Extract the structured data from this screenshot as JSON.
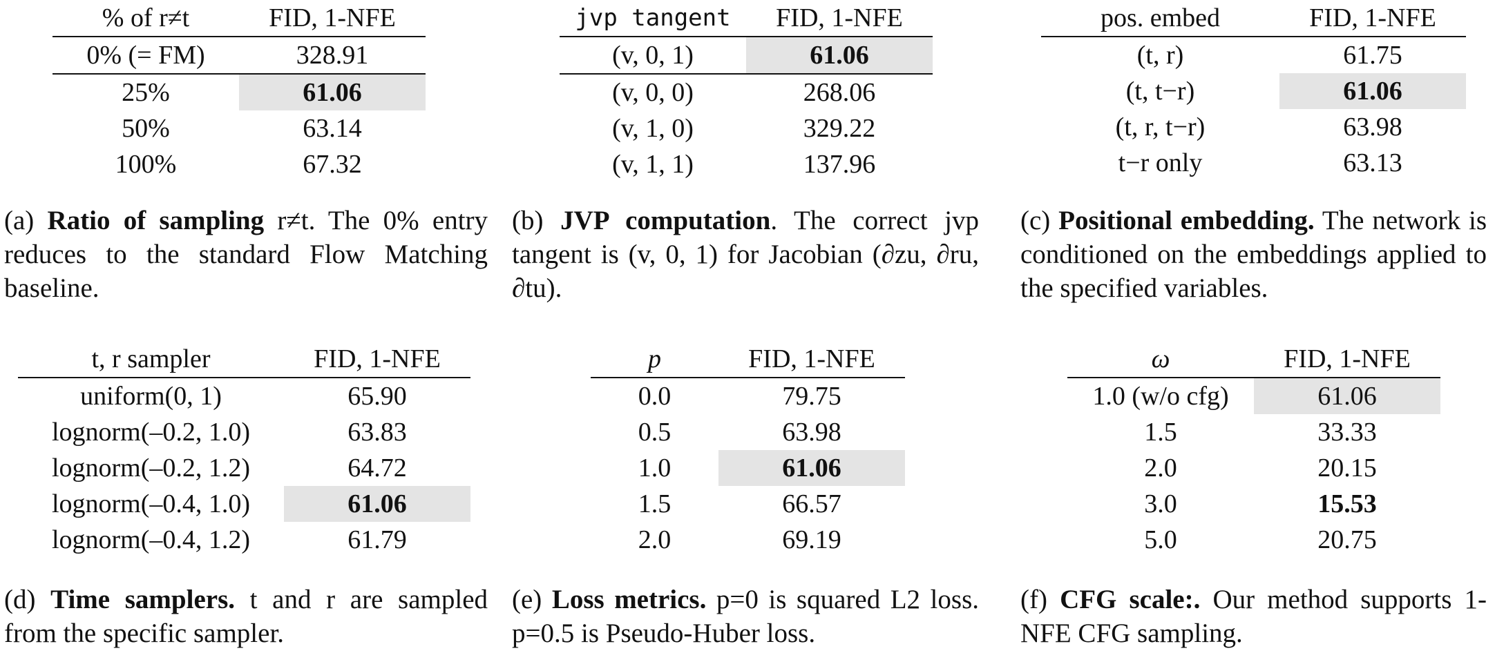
{
  "panels": [
    {
      "header": [
        "% of r≠t",
        "FID, 1-NFE"
      ],
      "rows": [
        [
          "0% (= FM)",
          "328.91"
        ],
        [
          "25%",
          "61.06"
        ],
        [
          "50%",
          "63.14"
        ],
        [
          "100%",
          "67.32"
        ]
      ],
      "caption": {
        "letter": "(a)",
        "title": "Ratio of sampling",
        "text": "r≠t. The 0% entry reduces to the standard Flow Matching baseline."
      }
    },
    {
      "header": [
        "jvp tangent",
        "FID, 1-NFE"
      ],
      "rows": [
        [
          "(v, 0, 1)",
          "61.06"
        ],
        [
          "(v, 0, 0)",
          "268.06"
        ],
        [
          "(v, 1, 0)",
          "329.22"
        ],
        [
          "(v, 1, 1)",
          "137.96"
        ]
      ],
      "caption": {
        "letter": "(b)",
        "title": "JVP computation",
        "text": ". The correct jvp tangent is (v, 0, 1) for Jacobian (∂zu, ∂ru, ∂tu)."
      }
    },
    {
      "header": [
        "pos. embed",
        "FID, 1-NFE"
      ],
      "rows": [
        [
          "(t, r)",
          "61.75"
        ],
        [
          "(t, t−r)",
          "61.06"
        ],
        [
          "(t, r, t−r)",
          "63.98"
        ],
        [
          "t−r only",
          "63.13"
        ]
      ],
      "caption": {
        "letter": "(c)",
        "title": "Positional embedding.",
        "text": "The network is conditioned on the embeddings applied to the specified variables."
      }
    },
    {
      "header": [
        "t, r sampler",
        "FID, 1-NFE"
      ],
      "rows": [
        [
          "uniform(0, 1)",
          "65.90"
        ],
        [
          "lognorm(–0.2, 1.0)",
          "63.83"
        ],
        [
          "lognorm(–0.2, 1.2)",
          "64.72"
        ],
        [
          "lognorm(–0.4, 1.0)",
          "61.06"
        ],
        [
          "lognorm(–0.4, 1.2)",
          "61.79"
        ]
      ],
      "caption": {
        "letter": "(d)",
        "title": "Time samplers.",
        "text": "t and r are sampled from the specific sampler."
      }
    },
    {
      "header": [
        "p",
        "FID, 1-NFE"
      ],
      "rows": [
        [
          "0.0",
          "79.75"
        ],
        [
          "0.5",
          "63.98"
        ],
        [
          "1.0",
          "61.06"
        ],
        [
          "1.5",
          "66.57"
        ],
        [
          "2.0",
          "69.19"
        ]
      ],
      "caption": {
        "letter": "(e)",
        "title": "Loss metrics.",
        "text": "p=0 is squared L2 loss. p=0.5 is Pseudo-Huber loss."
      }
    },
    {
      "header": [
        "ω",
        "FID, 1-NFE"
      ],
      "rows": [
        [
          "1.0 (w/o cfg)",
          "61.06"
        ],
        [
          "1.5",
          "33.33"
        ],
        [
          "2.0",
          "20.15"
        ],
        [
          "3.0",
          "15.53"
        ],
        [
          "5.0",
          "20.75"
        ]
      ],
      "caption": {
        "letter": "(f)",
        "title": "CFG scale:.",
        "text": "Our method supports 1-NFE CFG sampling."
      }
    }
  ]
}
